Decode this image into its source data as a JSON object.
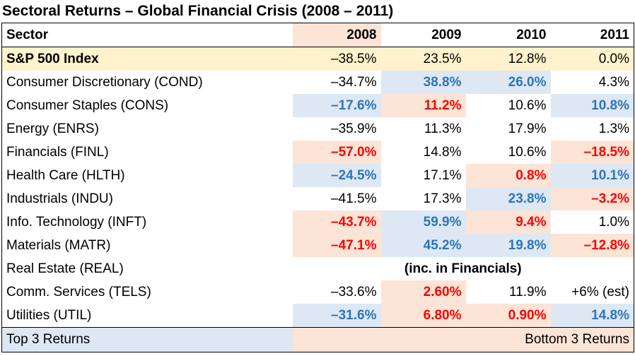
{
  "title": "Sectoral Returns – Global Financial Crisis (2008 – 2011)",
  "table": {
    "header": [
      "Sector",
      "2008",
      "2009",
      "2010",
      "2011"
    ],
    "rows": [
      [
        "S&P 500 Index",
        "–38.5%",
        "23.5%",
        "12.8%",
        "0.0%"
      ],
      [
        "Consumer Discretionary (COND)",
        "–34.7%",
        "38.8%",
        "26.0%",
        "4.3%"
      ],
      [
        "Consumer Staples (CONS)",
        "–17.6%",
        "11.2%",
        "10.6%",
        "10.8%"
      ],
      [
        "Energy (ENRS)",
        "–35.9%",
        "11.3%",
        "17.9%",
        "1.3%"
      ],
      [
        "Financials (FINL)",
        "–57.0%",
        "14.8%",
        "10.6%",
        "–18.5%"
      ],
      [
        "Health Care (HLTH)",
        "–24.5%",
        "17.1%",
        "0.8%",
        "10.1%"
      ],
      [
        "Industrials (INDU)",
        "–41.5%",
        "17.3%",
        "23.8%",
        "–3.2%"
      ],
      [
        "Info. Technology (INFT)",
        "–43.7%",
        "59.9%",
        "9.4%",
        "1.0%"
      ],
      [
        "Materials (MATR)",
        "–47.1%",
        "45.2%",
        "19.8%",
        "–12.8%"
      ],
      [
        "Real Estate (REAL)",
        "(inc. in Financials)"
      ],
      [
        "Comm. Services (TELS)",
        "–33.6%",
        "2.60%",
        "11.9%",
        "+6% (est)"
      ],
      [
        "Utilities (UTIL)",
        "–31.6%",
        "6.80%",
        "0.90%",
        "14.8%"
      ]
    ],
    "footer": {
      "top": "Top 3 Returns",
      "bottom": "Bottom 3 Returns"
    }
  }
}
